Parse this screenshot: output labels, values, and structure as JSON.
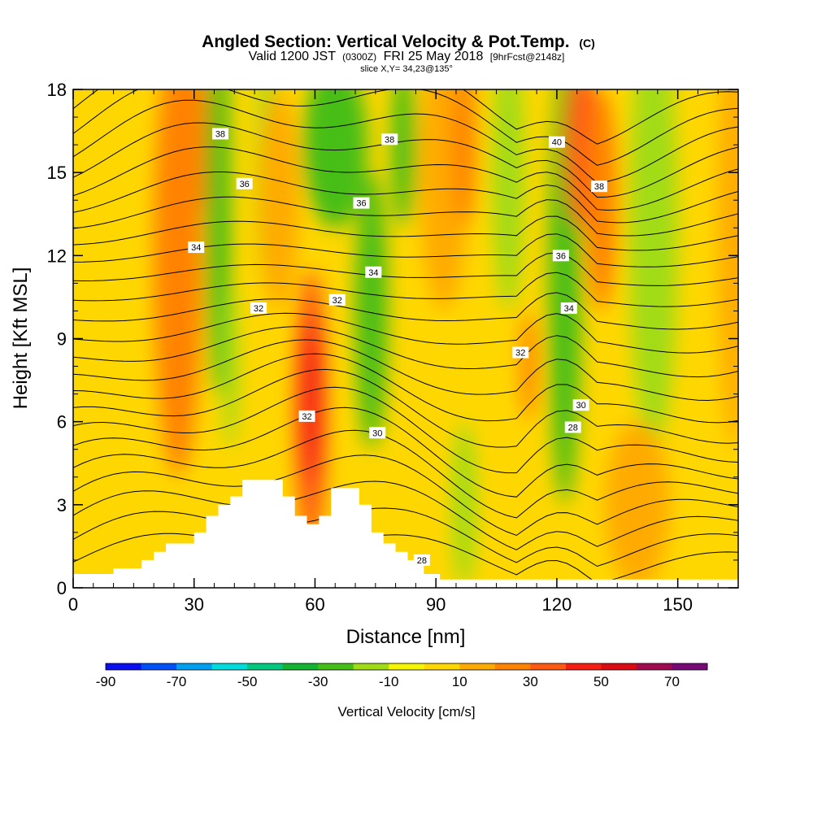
{
  "chart_data": {
    "type": "heatmap",
    "title": "Angled Section: Vertical Velocity & Pot.Temp.",
    "title_suffix": "(C)",
    "subtitle_valid": "Valid 1200 JST",
    "subtitle_utc": "(0300Z)",
    "subtitle_date": "FRI 25 May 2018",
    "subtitle_fcst": "[9hrFcst@2148z]",
    "slice_label": "slice X,Y= 34,23@135°",
    "xlabel": "Distance [nm]",
    "ylabel": "Height [Kft MSL]",
    "xlim": [
      0,
      165
    ],
    "ylim": [
      0,
      18
    ],
    "x_ticks": [
      "0",
      "30",
      "60",
      "90",
      "120",
      "150"
    ],
    "y_ticks": [
      "0",
      "3",
      "6",
      "9",
      "12",
      "15",
      "18"
    ],
    "colorbar": {
      "label": "Vertical Velocity [cm/s]",
      "ticks": [
        "-90",
        "-70",
        "-50",
        "-30",
        "-10",
        "10",
        "30",
        "50",
        "70"
      ],
      "min": -90,
      "max": 80,
      "step": 10,
      "colors": [
        "#0a0ff0",
        "#0050f5",
        "#00a0f0",
        "#00dcdc",
        "#00c880",
        "#14b432",
        "#46be19",
        "#a0dc14",
        "#f5f500",
        "#ffd700",
        "#ffaa00",
        "#ff8200",
        "#ff5a14",
        "#f51e14",
        "#dc0a14",
        "#a00a50",
        "#780a78"
      ]
    },
    "velocity_features": [
      {
        "x": 26,
        "y": 12,
        "w": 6,
        "h": 8,
        "value": 25
      },
      {
        "x": 30,
        "y": 16,
        "w": 4,
        "h": 3,
        "value": 25
      },
      {
        "x": 36,
        "y": 14,
        "w": 3,
        "h": 7,
        "value": -30
      },
      {
        "x": 39,
        "y": 8,
        "w": 2,
        "h": 3,
        "value": -15
      },
      {
        "x": 48,
        "y": 15,
        "w": 3,
        "h": 4,
        "value": -15
      },
      {
        "x": 51,
        "y": 14,
        "w": 5,
        "h": 4,
        "value": 15
      },
      {
        "x": 59,
        "y": 6.5,
        "w": 4,
        "h": 5,
        "value": 35
      },
      {
        "x": 59,
        "y": 6.8,
        "w": 2.5,
        "h": 3,
        "value": 48
      },
      {
        "x": 65,
        "y": 16,
        "w": 8,
        "h": 3,
        "value": -25
      },
      {
        "x": 74,
        "y": 10,
        "w": 4,
        "h": 5,
        "value": -25
      },
      {
        "x": 82,
        "y": 16,
        "w": 3,
        "h": 3,
        "value": -25
      },
      {
        "x": 92,
        "y": 15,
        "w": 6,
        "h": 5,
        "value": 15
      },
      {
        "x": 97,
        "y": 16,
        "w": 3,
        "h": 3,
        "value": 25
      },
      {
        "x": 97,
        "y": 3,
        "w": 3,
        "h": 3,
        "value": -20
      },
      {
        "x": 108,
        "y": 15,
        "w": 4,
        "h": 5,
        "value": -15
      },
      {
        "x": 113,
        "y": 8,
        "w": 2,
        "h": 2,
        "value": 25
      },
      {
        "x": 122,
        "y": 11,
        "w": 4,
        "h": 8,
        "value": -25
      },
      {
        "x": 126,
        "y": 16,
        "w": 4,
        "h": 3,
        "value": 35
      },
      {
        "x": 131,
        "y": 14,
        "w": 4,
        "h": 4,
        "value": 25
      },
      {
        "x": 144,
        "y": 13,
        "w": 6,
        "h": 8,
        "value": -12
      },
      {
        "x": 140,
        "y": 3,
        "w": 8,
        "h": 3,
        "value": 15
      },
      {
        "x": 164,
        "y": 13,
        "w": 4,
        "h": 8,
        "value": 15
      }
    ],
    "contour_labels": [
      {
        "text": "38",
        "x": 36.5,
        "y": 16.4
      },
      {
        "text": "36",
        "x": 42.5,
        "y": 14.6
      },
      {
        "text": "34",
        "x": 30.5,
        "y": 12.3
      },
      {
        "text": "32",
        "x": 46,
        "y": 10.1
      },
      {
        "text": "32",
        "x": 65.5,
        "y": 10.4
      },
      {
        "text": "32",
        "x": 58,
        "y": 6.2
      },
      {
        "text": "38",
        "x": 78.5,
        "y": 16.2
      },
      {
        "text": "36",
        "x": 71.5,
        "y": 13.9
      },
      {
        "text": "34",
        "x": 74.5,
        "y": 11.4
      },
      {
        "text": "30",
        "x": 75.5,
        "y": 5.6
      },
      {
        "text": "28",
        "x": 86.5,
        "y": 1
      },
      {
        "text": "40",
        "x": 120,
        "y": 16.1
      },
      {
        "text": "38",
        "x": 130.5,
        "y": 14.5
      },
      {
        "text": "36",
        "x": 121,
        "y": 12
      },
      {
        "text": "34",
        "x": 123,
        "y": 10.1
      },
      {
        "text": "32",
        "x": 111,
        "y": 8.5
      },
      {
        "text": "30",
        "x": 126,
        "y": 6.6
      },
      {
        "text": "28",
        "x": 124,
        "y": 5.8
      }
    ],
    "terrain_profile": [
      [
        0,
        0.5
      ],
      [
        10,
        0.5
      ],
      [
        10,
        0.7
      ],
      [
        17,
        0.7
      ],
      [
        17,
        1
      ],
      [
        20,
        1
      ],
      [
        20,
        1.3
      ],
      [
        23,
        1.3
      ],
      [
        23,
        1.6
      ],
      [
        30,
        1.6
      ],
      [
        30,
        2
      ],
      [
        33,
        2
      ],
      [
        33,
        2.6
      ],
      [
        36,
        2.6
      ],
      [
        36,
        3
      ],
      [
        39,
        3
      ],
      [
        39,
        3.3
      ],
      [
        42,
        3.3
      ],
      [
        42,
        3.9
      ],
      [
        52,
        3.9
      ],
      [
        52,
        3.3
      ],
      [
        55,
        3.3
      ],
      [
        55,
        2.6
      ],
      [
        58,
        2.6
      ],
      [
        58,
        2.3
      ],
      [
        61,
        2.3
      ],
      [
        61,
        2.6
      ],
      [
        64,
        2.6
      ],
      [
        64,
        3.6
      ],
      [
        71,
        3.6
      ],
      [
        71,
        3
      ],
      [
        74,
        3
      ],
      [
        74,
        2
      ],
      [
        77,
        2
      ],
      [
        77,
        1.6
      ],
      [
        80,
        1.6
      ],
      [
        80,
        1.3
      ],
      [
        83,
        1.3
      ],
      [
        83,
        1
      ],
      [
        87,
        1
      ],
      [
        87,
        0.5
      ],
      [
        91,
        0.5
      ],
      [
        91,
        0.3
      ],
      [
        165,
        0.3
      ]
    ]
  }
}
